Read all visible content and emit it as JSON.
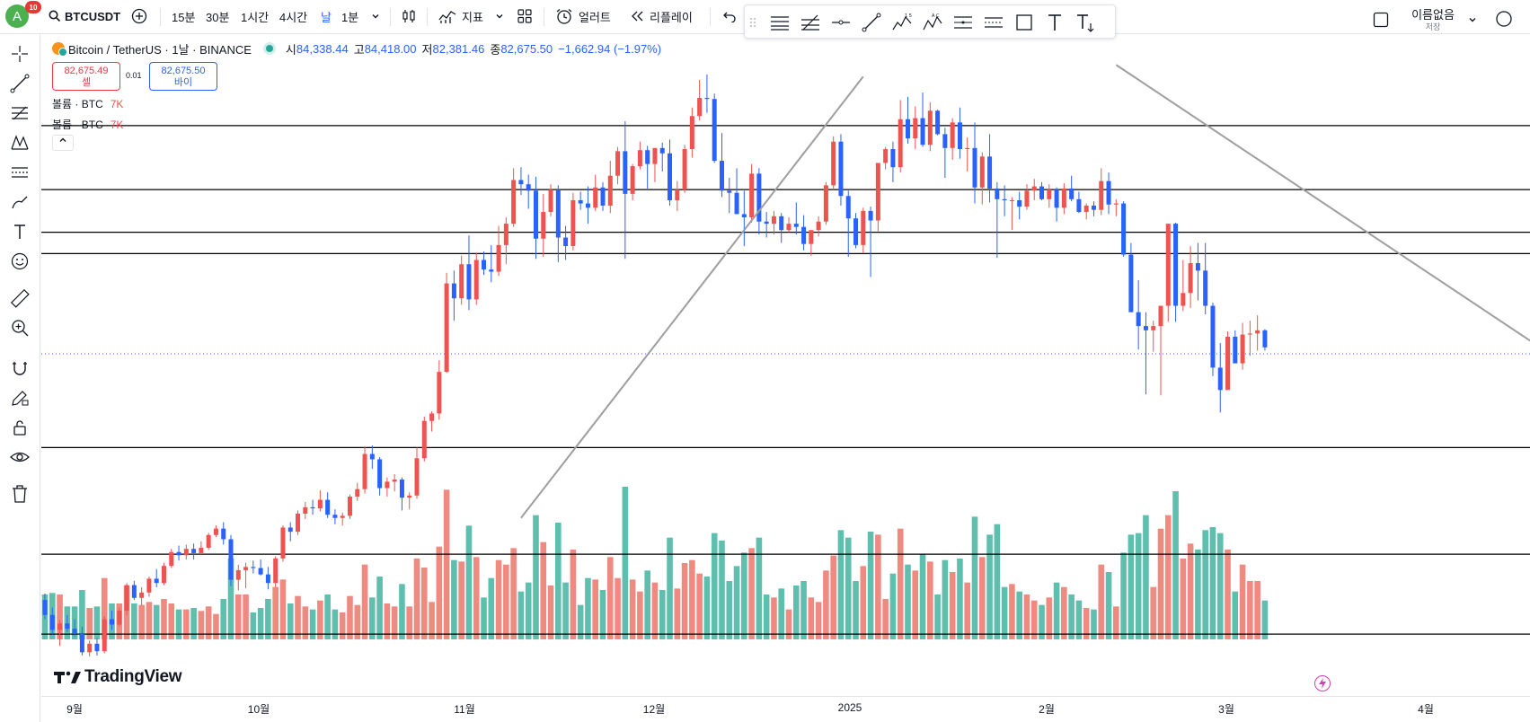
{
  "toolbar": {
    "avatar_letter": "A",
    "avatar_badge": "10",
    "symbol": "BTCUSDT",
    "intervals": [
      "15분",
      "30분",
      "1시간",
      "4시간",
      "날",
      "1분"
    ],
    "active_interval": "날",
    "indicators_label": "지표",
    "alert_label": "얼러트",
    "replay_label": "리플레이",
    "layout_name": "이름없음",
    "layout_sub": "저장"
  },
  "legend": {
    "title": "Bitcoin / TetherUS · 1날 · BINANCE",
    "open_label": "시",
    "open": "84,338.44",
    "high_label": "고",
    "high": "84,418.00",
    "low_label": "저",
    "low": "82,381.46",
    "close_label": "종",
    "close": "82,675.50",
    "change": "−1,662.94 (−1.97%)"
  },
  "trade": {
    "sell_price": "82,675.49",
    "sell_label": "셀",
    "spread": "0.01",
    "buy_price": "82,675.50",
    "buy_label": "바이"
  },
  "volume_rows": [
    {
      "label": "볼륨 · BTC",
      "value": "7K"
    },
    {
      "label": "볼륨 · BTC",
      "value": "7K"
    }
  ],
  "x_axis": {
    "labels": [
      "9월",
      "10월",
      "11월",
      "12월",
      "2025",
      "2월",
      "3월",
      "4월"
    ]
  },
  "brand": "TradingView",
  "colors": {
    "up": "#ef5350",
    "down": "#2962ff",
    "vol_up": "#ef8a80",
    "vol_down": "#5fbfae",
    "trendline": "#9e9e9e",
    "level": "#000000"
  },
  "chart_data": {
    "type": "candlestick",
    "symbol": "BTCUSDT",
    "interval": "1D",
    "title": "",
    "x_labels": [
      "9월",
      "10월",
      "11월",
      "12월",
      "2025",
      "2월",
      "3월",
      "4월"
    ],
    "candles_ohlc": [
      [
        59000,
        59600,
        57200,
        57600
      ],
      [
        57600,
        58300,
        55800,
        56200
      ],
      [
        56200,
        57100,
        54700,
        56800
      ],
      [
        56800,
        57600,
        56000,
        56300
      ],
      [
        56300,
        57200,
        55600,
        55900
      ],
      [
        55900,
        56500,
        53800,
        54100
      ],
      [
        54100,
        55200,
        53700,
        54900
      ],
      [
        54900,
        55400,
        53800,
        54200
      ],
      [
        54200,
        57500,
        54000,
        57200
      ],
      [
        57200,
        58000,
        56200,
        56700
      ],
      [
        56700,
        58300,
        56500,
        58000
      ],
      [
        58000,
        60600,
        57600,
        60400
      ],
      [
        60400,
        60800,
        59000,
        59200
      ],
      [
        59200,
        60200,
        58500,
        59700
      ],
      [
        59700,
        61200,
        59300,
        61000
      ],
      [
        61000,
        61900,
        60200,
        60600
      ],
      [
        60600,
        62500,
        60400,
        62200
      ],
      [
        62200,
        63800,
        62000,
        63500
      ],
      [
        63500,
        64100,
        62700,
        63200
      ],
      [
        63200,
        64200,
        62800,
        63800
      ],
      [
        63800,
        64300,
        62800,
        63400
      ],
      [
        63400,
        64500,
        63200,
        63900
      ],
      [
        63900,
        65300,
        63700,
        65100
      ],
      [
        65100,
        66000,
        64900,
        65700
      ],
      [
        65700,
        66300,
        64200,
        64700
      ],
      [
        64700,
        65100,
        60300,
        60900
      ],
      [
        60900,
        62300,
        59900,
        61800
      ],
      [
        61800,
        62500,
        60100,
        62100
      ],
      [
        62100,
        62700,
        61500,
        62000
      ],
      [
        62000,
        62800,
        61300,
        61400
      ],
      [
        61400,
        62100,
        60000,
        60600
      ],
      [
        60600,
        63100,
        60200,
        62900
      ],
      [
        62900,
        66000,
        62600,
        65800
      ],
      [
        65800,
        66300,
        64500,
        65400
      ],
      [
        65400,
        67400,
        65100,
        67100
      ],
      [
        67100,
        68200,
        66600,
        67700
      ],
      [
        67700,
        68400,
        67000,
        67600
      ],
      [
        67600,
        69300,
        67300,
        68400
      ],
      [
        68400,
        69100,
        66700,
        67000
      ],
      [
        67000,
        67500,
        66100,
        66700
      ],
      [
        66700,
        67200,
        66000,
        66900
      ],
      [
        66900,
        68900,
        66600,
        68700
      ],
      [
        68700,
        70000,
        68300,
        69400
      ],
      [
        69400,
        73400,
        69000,
        72700
      ],
      [
        72700,
        73500,
        71300,
        72200
      ],
      [
        72200,
        72400,
        68800,
        69500
      ],
      [
        69500,
        70500,
        68700,
        70100
      ],
      [
        70100,
        70800,
        69200,
        70300
      ],
      [
        70300,
        70500,
        67400,
        68600
      ],
      [
        68600,
        69100,
        67500,
        68800
      ],
      [
        68800,
        73300,
        68500,
        72300
      ],
      [
        72300,
        76200,
        72000,
        75800
      ],
      [
        75800,
        76700,
        74800,
        76500
      ],
      [
        76500,
        81500,
        75900,
        80400
      ],
      [
        80400,
        89700,
        80300,
        88700
      ],
      [
        88700,
        89900,
        85200,
        87300
      ],
      [
        87300,
        91300,
        86700,
        90500
      ],
      [
        90500,
        93200,
        86200,
        87200
      ],
      [
        87200,
        91600,
        86700,
        90900
      ],
      [
        90900,
        91700,
        89500,
        90000
      ],
      [
        90000,
        92300,
        88800,
        89800
      ],
      [
        89800,
        94100,
        89400,
        92300
      ],
      [
        92300,
        94900,
        90500,
        94300
      ],
      [
        94300,
        99500,
        94000,
        98400
      ],
      [
        98400,
        99600,
        97000,
        98000
      ],
      [
        98000,
        98900,
        95700,
        97400
      ],
      [
        97400,
        98700,
        91000,
        92900
      ],
      [
        92900,
        97100,
        91200,
        95400
      ],
      [
        95400,
        98000,
        95000,
        97500
      ],
      [
        97500,
        97900,
        90700,
        93000
      ],
      [
        93000,
        94100,
        90900,
        92200
      ],
      [
        92200,
        97200,
        91800,
        96500
      ],
      [
        96500,
        97300,
        95600,
        96200
      ],
      [
        96200,
        97800,
        94300,
        95800
      ],
      [
        95800,
        98900,
        95500,
        97700
      ],
      [
        97700,
        98200,
        95500,
        96000
      ],
      [
        96000,
        100200,
        95300,
        98800
      ],
      [
        98800,
        101500,
        98000,
        101100
      ],
      [
        101100,
        103900,
        91000,
        97100
      ],
      [
        97100,
        99900,
        96500,
        99700
      ],
      [
        99700,
        102000,
        99400,
        101200
      ],
      [
        101200,
        101600,
        97600,
        99900
      ],
      [
        99900,
        101400,
        98200,
        101400
      ],
      [
        101400,
        101900,
        99200,
        100900
      ],
      [
        100900,
        102200,
        96000,
        96500
      ],
      [
        96500,
        98300,
        95500,
        97500
      ],
      [
        97500,
        101700,
        97200,
        101300
      ],
      [
        101300,
        105200,
        100500,
        104400
      ],
      [
        104400,
        107800,
        104000,
        106100
      ],
      [
        106100,
        108300,
        104700,
        106000
      ],
      [
        106000,
        106500,
        100000,
        100200
      ],
      [
        100200,
        102800,
        96800,
        97400
      ],
      [
        97400,
        98600,
        95300,
        97200
      ],
      [
        97200,
        99500,
        95200,
        95200
      ],
      [
        95200,
        97400,
        92200,
        94900
      ],
      [
        94900,
        99900,
        94400,
        99000
      ],
      [
        99000,
        99500,
        93300,
        94500
      ],
      [
        94500,
        95400,
        93000,
        94300
      ],
      [
        94300,
        95500,
        93300,
        95000
      ],
      [
        95000,
        95300,
        92500,
        93700
      ],
      [
        93700,
        94900,
        93500,
        94300
      ],
      [
        94300,
        96300,
        93300,
        94000
      ],
      [
        94000,
        95100,
        91800,
        92400
      ],
      [
        92400,
        93500,
        91300,
        93700
      ],
      [
        93700,
        95000,
        93100,
        94500
      ],
      [
        94500,
        98200,
        94200,
        97900
      ],
      [
        97900,
        102500,
        97500,
        102000
      ],
      [
        102000,
        102700,
        96000,
        96900
      ],
      [
        96900,
        97400,
        91200,
        94800
      ],
      [
        94800,
        95300,
        92000,
        92300
      ],
      [
        92300,
        95800,
        91500,
        95500
      ],
      [
        95500,
        95900,
        89300,
        94600
      ],
      [
        94600,
        100000,
        93600,
        100000
      ],
      [
        100000,
        101500,
        99400,
        101300
      ],
      [
        101300,
        102000,
        98200,
        99600
      ],
      [
        99600,
        105900,
        99100,
        104100
      ],
      [
        104100,
        106200,
        101800,
        102300
      ],
      [
        102300,
        105300,
        101300,
        104200
      ],
      [
        104200,
        106600,
        101500,
        101700
      ],
      [
        101700,
        105700,
        101100,
        104900
      ],
      [
        104900,
        105000,
        102600,
        102700
      ],
      [
        102700,
        103300,
        98600,
        101400
      ],
      [
        101400,
        104200,
        100300,
        103800
      ],
      [
        103800,
        105200,
        100400,
        101300
      ],
      [
        101300,
        102400,
        99200,
        101400
      ],
      [
        101400,
        103800,
        96200,
        97700
      ],
      [
        97700,
        101000,
        96100,
        100600
      ],
      [
        100600,
        102700,
        96300,
        97600
      ],
      [
        97600,
        98200,
        91100,
        96600
      ],
      [
        96600,
        97900,
        95000,
        96500
      ],
      [
        96500,
        96800,
        93700,
        96500
      ],
      [
        96500,
        97300,
        94700,
        95900
      ],
      [
        95900,
        98000,
        95600,
        97400
      ],
      [
        97400,
        98500,
        96500,
        97800
      ],
      [
        97800,
        98200,
        96500,
        96600
      ],
      [
        96600,
        98000,
        95800,
        97500
      ],
      [
        97500,
        97700,
        94500,
        95800
      ],
      [
        95800,
        98100,
        95200,
        97600
      ],
      [
        97600,
        98800,
        96400,
        96600
      ],
      [
        96600,
        97300,
        95300,
        95400
      ],
      [
        95400,
        96200,
        94700,
        96000
      ],
      [
        96000,
        96400,
        95000,
        95600
      ],
      [
        95600,
        99500,
        95100,
        98300
      ],
      [
        98300,
        99100,
        95200,
        96100
      ],
      [
        96100,
        96600,
        95000,
        96200
      ],
      [
        96200,
        96400,
        91200,
        91400
      ],
      [
        91400,
        92500,
        86100,
        86000
      ],
      [
        86000,
        89000,
        82500,
        84700
      ],
      [
        84700,
        86000,
        78300,
        84300
      ],
      [
        84300,
        85200,
        82300,
        84700
      ],
      [
        84700,
        85000,
        78200,
        86600
      ],
      [
        86600,
        92800,
        85100,
        94300
      ],
      [
        94300,
        94400,
        85100,
        86600
      ],
      [
        86600,
        90900,
        86100,
        87800
      ],
      [
        87800,
        92200,
        86400,
        90600
      ],
      [
        90600,
        92500,
        87100,
        89900
      ],
      [
        89900,
        92500,
        85800,
        86600
      ],
      [
        86600,
        86900,
        80000,
        80800
      ],
      [
        80800,
        83100,
        76600,
        78700
      ],
      [
        78700,
        84200,
        78800,
        83700
      ],
      [
        83700,
        84300,
        81700,
        81200
      ],
      [
        81200,
        85000,
        80600,
        83900
      ],
      [
        83900,
        85200,
        81900,
        84000
      ],
      [
        84000,
        85700,
        82400,
        84300
      ],
      [
        84300,
        84400,
        82400,
        82700
      ]
    ],
    "volume_bars": "volume histogram at bottom (BTC, values not labeled)",
    "horizontal_levels": [
      103500,
      97500,
      93500,
      91500,
      73300,
      63300,
      55800
    ],
    "trendlines": [
      {
        "from": [
          66700,
          "2024-11-01"
        ],
        "to": [
          108100,
          "2024-12-17"
        ]
      },
      {
        "from": [
          109200,
          "2025-01-20"
        ],
        "to": [
          72000,
          "2025-04-10"
        ]
      }
    ],
    "last_price": 82675.5,
    "ylim": [
      50000,
      112000
    ]
  }
}
